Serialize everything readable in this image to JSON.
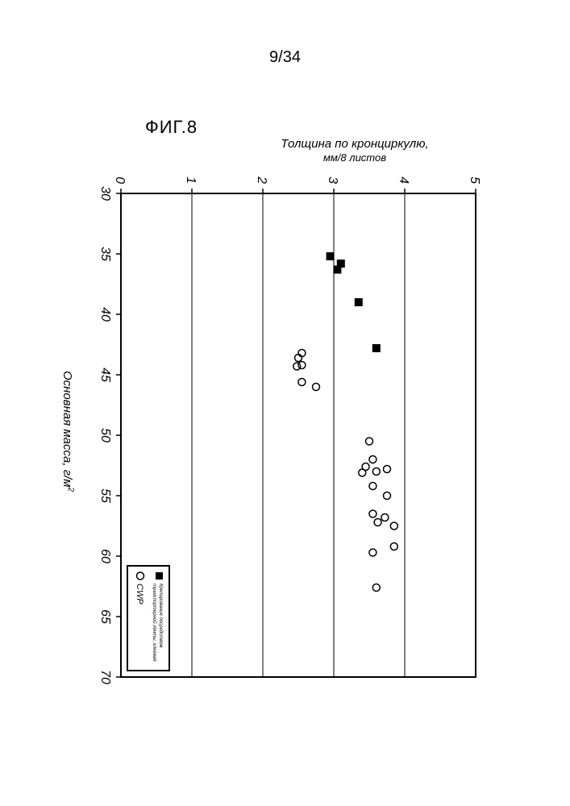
{
  "page_number": "9/34",
  "figure_title": "ФИГ.8",
  "chart": {
    "type": "scatter",
    "background_color": "#ffffff",
    "border_color": "#000000",
    "border_width": 2,
    "grid_color": "#000000",
    "grid_width": 1,
    "xlabel": "Основная масса, г/м",
    "xlabel_sup": "2",
    "ylabel_line1": "Толщина по кронциркулю,",
    "ylabel_line2": "мм/8 листов",
    "xlim": [
      30,
      70
    ],
    "ylim": [
      0,
      5
    ],
    "xticks": [
      30,
      35,
      40,
      45,
      50,
      55,
      60,
      65,
      70
    ],
    "yticks": [
      0,
      1,
      2,
      3,
      4,
      5
    ],
    "label_fontsize": 15,
    "tick_fontsize": 16,
    "series": [
      {
        "name": "Крепирование посредством транспортерной ленты, клеевая",
        "marker": "filled-square",
        "marker_size": 9,
        "fill_color": "#000000",
        "stroke_color": "#000000",
        "points": [
          [
            35.2,
            2.95
          ],
          [
            35.8,
            3.1
          ],
          [
            36.3,
            3.05
          ],
          [
            39.0,
            3.35
          ],
          [
            42.8,
            3.6
          ]
        ]
      },
      {
        "name": "CWP",
        "marker": "open-circle",
        "marker_size": 9,
        "fill_color": "none",
        "stroke_color": "#000000",
        "stroke_width": 1.5,
        "points": [
          [
            43.2,
            2.55
          ],
          [
            43.6,
            2.5
          ],
          [
            44.2,
            2.55
          ],
          [
            44.3,
            2.48
          ],
          [
            45.6,
            2.55
          ],
          [
            46.0,
            2.75
          ],
          [
            50.5,
            3.5
          ],
          [
            52.0,
            3.55
          ],
          [
            52.6,
            3.45
          ],
          [
            53.0,
            3.6
          ],
          [
            53.1,
            3.4
          ],
          [
            52.8,
            3.75
          ],
          [
            54.2,
            3.55
          ],
          [
            55.0,
            3.75
          ],
          [
            56.5,
            3.55
          ],
          [
            56.8,
            3.72
          ],
          [
            57.2,
            3.62
          ],
          [
            57.5,
            3.85
          ],
          [
            59.2,
            3.85
          ],
          [
            59.7,
            3.55
          ],
          [
            62.6,
            3.6
          ]
        ]
      }
    ],
    "legend": {
      "position": "bottom-right-inside",
      "border_color": "#000000",
      "background_color": "#ffffff",
      "items": [
        {
          "marker": "filled-square",
          "label_line1": "Крепирование посредством",
          "label_line2": "транспортерной ленты, клеевая"
        },
        {
          "marker": "open-circle",
          "label": "CWP"
        }
      ]
    }
  }
}
